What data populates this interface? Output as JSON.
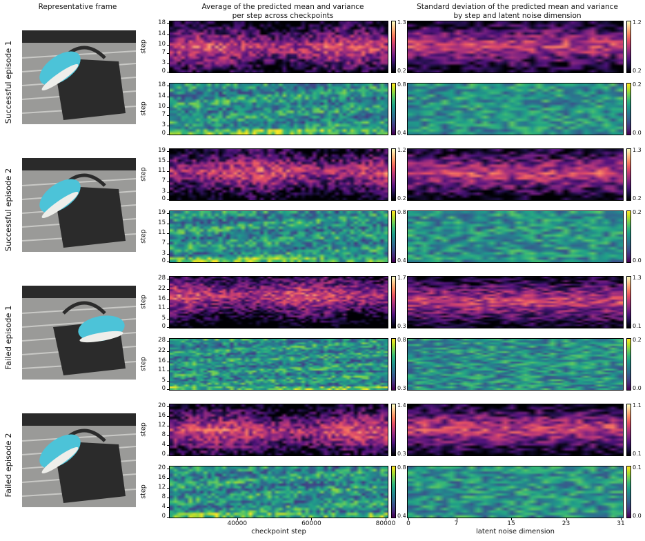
{
  "columns": {
    "frame_title": "Representative frame",
    "avg_title_line1": "Average of the predicted mean and variance",
    "avg_title_line2": "per step across checkpoints",
    "std_title_line1": "Standard deviation of the predicted mean and variance",
    "std_title_line2": "by step and latent noise dimension"
  },
  "episodes": [
    {
      "label": "Successful episode 1"
    },
    {
      "label": "Successful episode 2"
    },
    {
      "label": "Failed episode 1"
    },
    {
      "label": "Failed episode 2"
    }
  ],
  "colors": {
    "magma": [
      "#000004",
      "#1c1044",
      "#4f127b",
      "#812581",
      "#b5367a",
      "#e55064",
      "#fb8761",
      "#fec287",
      "#fcfdbf"
    ],
    "viridis": [
      "#440154",
      "#482878",
      "#3e4989",
      "#31688e",
      "#26828e",
      "#1f9e89",
      "#35b779",
      "#6ece58",
      "#b5de2b",
      "#fde725"
    ]
  },
  "chart_data": [
    {
      "type": "heatmap",
      "episode": "Successful episode 1",
      "column": "average",
      "quantity": "mean",
      "colormap": "magma",
      "ylabel": "step",
      "yticks": [
        0,
        3,
        7,
        10,
        14,
        18
      ],
      "ylim": [
        0,
        18
      ],
      "xlim": [
        22000,
        80000
      ],
      "cbar": [
        0.2,
        1.3
      ]
    },
    {
      "type": "heatmap",
      "episode": "Successful episode 1",
      "column": "average",
      "quantity": "variance",
      "colormap": "viridis",
      "ylabel": "step",
      "yticks": [
        0,
        3,
        7,
        10,
        14,
        18
      ],
      "ylim": [
        0,
        18
      ],
      "xlim": [
        22000,
        80000
      ],
      "cbar": [
        0.4,
        0.8
      ]
    },
    {
      "type": "heatmap",
      "episode": "Successful episode 1",
      "column": "std",
      "quantity": "mean",
      "colormap": "magma",
      "ylim": [
        0,
        18
      ],
      "xlim": [
        0,
        31
      ],
      "cbar": [
        0.2,
        1.2
      ]
    },
    {
      "type": "heatmap",
      "episode": "Successful episode 1",
      "column": "std",
      "quantity": "variance",
      "colormap": "viridis",
      "ylim": [
        0,
        18
      ],
      "xlim": [
        0,
        31
      ],
      "cbar": [
        0.0,
        0.2
      ]
    },
    {
      "type": "heatmap",
      "episode": "Successful episode 2",
      "column": "average",
      "quantity": "mean",
      "colormap": "magma",
      "ylabel": "step",
      "yticks": [
        0,
        3,
        7,
        11,
        15,
        19
      ],
      "ylim": [
        0,
        19
      ],
      "xlim": [
        22000,
        80000
      ],
      "cbar": [
        0.2,
        1.2
      ]
    },
    {
      "type": "heatmap",
      "episode": "Successful episode 2",
      "column": "average",
      "quantity": "variance",
      "colormap": "viridis",
      "ylabel": "step",
      "yticks": [
        0,
        3,
        7,
        11,
        15,
        19
      ],
      "ylim": [
        0,
        19
      ],
      "xlim": [
        22000,
        80000
      ],
      "cbar": [
        0.4,
        0.8
      ]
    },
    {
      "type": "heatmap",
      "episode": "Successful episode 2",
      "column": "std",
      "quantity": "mean",
      "colormap": "magma",
      "ylim": [
        0,
        19
      ],
      "xlim": [
        0,
        31
      ],
      "cbar": [
        0.2,
        1.3
      ]
    },
    {
      "type": "heatmap",
      "episode": "Successful episode 2",
      "column": "std",
      "quantity": "variance",
      "colormap": "viridis",
      "ylim": [
        0,
        19
      ],
      "xlim": [
        0,
        31
      ],
      "cbar": [
        0.0,
        0.2
      ]
    },
    {
      "type": "heatmap",
      "episode": "Failed episode 1",
      "column": "average",
      "quantity": "mean",
      "colormap": "magma",
      "ylabel": "step",
      "yticks": [
        0,
        5,
        11,
        16,
        22,
        28
      ],
      "ylim": [
        0,
        28
      ],
      "xlim": [
        22000,
        80000
      ],
      "cbar": [
        0.3,
        1.7
      ]
    },
    {
      "type": "heatmap",
      "episode": "Failed episode 1",
      "column": "average",
      "quantity": "variance",
      "colormap": "viridis",
      "ylabel": "step",
      "yticks": [
        0,
        5,
        11,
        16,
        22,
        28
      ],
      "ylim": [
        0,
        28
      ],
      "xlim": [
        22000,
        80000
      ],
      "cbar": [
        0.3,
        0.8
      ]
    },
    {
      "type": "heatmap",
      "episode": "Failed episode 1",
      "column": "std",
      "quantity": "mean",
      "colormap": "magma",
      "ylim": [
        0,
        28
      ],
      "xlim": [
        0,
        31
      ],
      "cbar": [
        0.1,
        1.3
      ]
    },
    {
      "type": "heatmap",
      "episode": "Failed episode 1",
      "column": "std",
      "quantity": "variance",
      "colormap": "viridis",
      "ylim": [
        0,
        28
      ],
      "xlim": [
        0,
        31
      ],
      "cbar": [
        0.0,
        0.2
      ]
    },
    {
      "type": "heatmap",
      "episode": "Failed episode 2",
      "column": "average",
      "quantity": "mean",
      "colormap": "magma",
      "ylabel": "step",
      "yticks": [
        0,
        4,
        8,
        12,
        16,
        20
      ],
      "ylim": [
        0,
        20
      ],
      "xlim": [
        22000,
        80000
      ],
      "cbar": [
        0.3,
        1.4
      ]
    },
    {
      "type": "heatmap",
      "episode": "Failed episode 2",
      "column": "average",
      "quantity": "variance",
      "colormap": "viridis",
      "ylabel": "step",
      "yticks": [
        0,
        4,
        8,
        12,
        16,
        20
      ],
      "ylim": [
        0,
        20
      ],
      "xlim": [
        22000,
        80000
      ],
      "cbar": [
        0.4,
        0.8
      ],
      "xticks": [
        40000,
        60000,
        80000
      ],
      "xlabel": "checkpoint step"
    },
    {
      "type": "heatmap",
      "episode": "Failed episode 2",
      "column": "std",
      "quantity": "mean",
      "colormap": "magma",
      "ylim": [
        0,
        20
      ],
      "xlim": [
        0,
        31
      ],
      "cbar": [
        0.1,
        1.1
      ]
    },
    {
      "type": "heatmap",
      "episode": "Failed episode 2",
      "column": "std",
      "quantity": "variance",
      "colormap": "viridis",
      "ylim": [
        0,
        20
      ],
      "xlim": [
        0,
        31
      ],
      "cbar": [
        0.0,
        0.1
      ],
      "xticks": [
        0,
        7,
        15,
        23,
        31
      ],
      "xlabel": "latent noise dimension"
    }
  ]
}
